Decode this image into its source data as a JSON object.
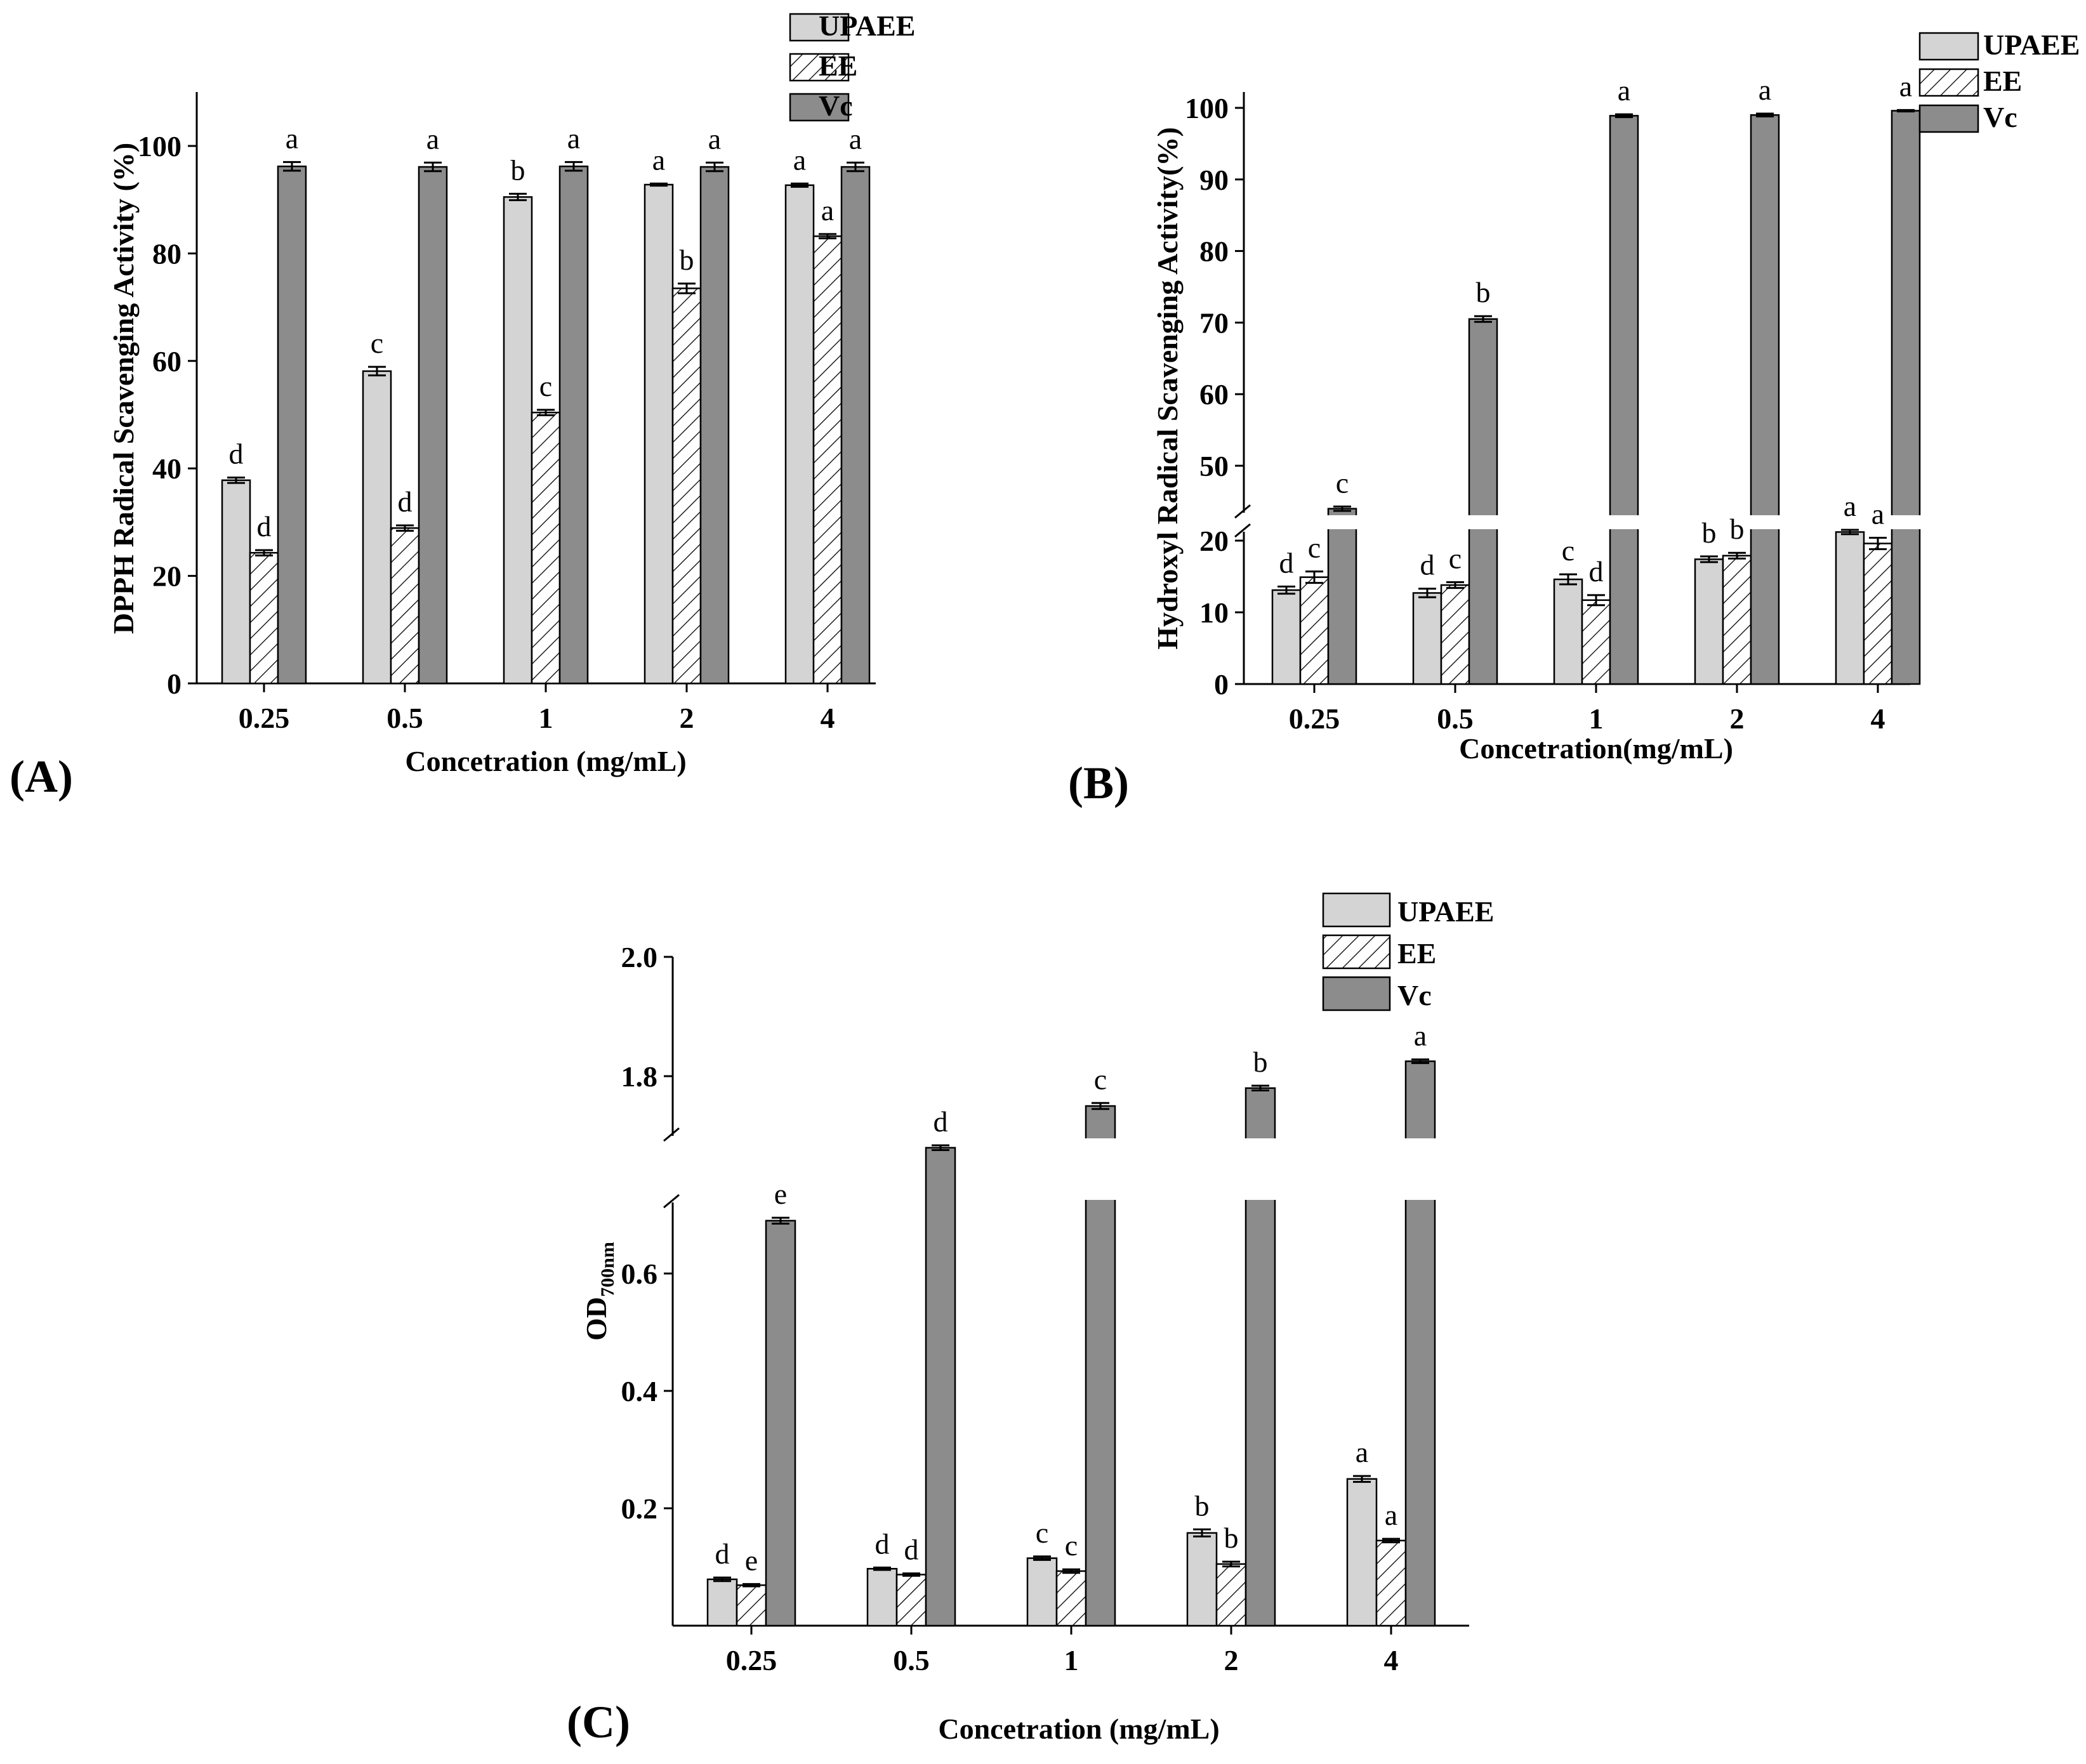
{
  "legend": {
    "upaee": "UPAEE",
    "ee": "EE",
    "vc": "Vc"
  },
  "colors": {
    "upaee": "#d4d4d4",
    "ee": "#ffffff",
    "vc": "#8c8c8c",
    "axis": "#000000"
  },
  "chart_data": [
    {
      "panel": "(A)",
      "type": "bar",
      "categories": [
        "0.25",
        "0.5",
        "1",
        "2",
        "4"
      ],
      "xlabel": "Concetration (mg/mL)",
      "ylabel": "DPPH Radical Scavenging Activity (%)",
      "ylim": [
        0,
        110
      ],
      "yticks": [
        "0",
        "20",
        "40",
        "60",
        "80",
        "100"
      ],
      "series": [
        {
          "name": "UPAEE",
          "values": [
            37.8,
            58.1,
            90.5,
            92.8,
            92.7
          ],
          "errors": [
            0.5,
            0.8,
            0.6,
            0.2,
            0.3
          ],
          "letters": [
            "d",
            "c",
            "b",
            "a",
            "a"
          ]
        },
        {
          "name": "EE",
          "values": [
            24.3,
            28.9,
            50.4,
            73.5,
            83.2
          ],
          "errors": [
            0.5,
            0.5,
            0.5,
            0.9,
            0.4
          ],
          "letters": [
            "d",
            "d",
            "c",
            "b",
            "a"
          ]
        },
        {
          "name": "Vc",
          "values": [
            96.2,
            96.1,
            96.2,
            96.1,
            96.1
          ],
          "errors": [
            0.8,
            0.8,
            0.8,
            0.8,
            0.8
          ],
          "letters": [
            "a",
            "a",
            "a",
            "a",
            "a"
          ]
        }
      ]
    },
    {
      "panel": "(B)",
      "type": "bar",
      "categories": [
        "0.25",
        "0.5",
        "1",
        "2",
        "4"
      ],
      "xlabel": "Concetration(mg/mL)",
      "ylabel": "Hydroxyl Radical Scavenging Activity(%)",
      "ylim": [
        0,
        100
      ],
      "axis_break": [
        22,
        42
      ],
      "yticks": [
        "0",
        "10",
        "20",
        "50",
        "60",
        "70",
        "80",
        "90",
        "100"
      ],
      "series": [
        {
          "name": "UPAEE",
          "values": [
            13.1,
            12.7,
            14.6,
            17.4,
            21.2
          ],
          "errors": [
            0.5,
            0.6,
            0.7,
            0.4,
            0.3
          ],
          "letters": [
            "d",
            "d",
            "c",
            "b",
            "a"
          ]
        },
        {
          "name": "EE",
          "values": [
            14.9,
            13.8,
            11.7,
            17.9,
            19.6
          ],
          "errors": [
            0.8,
            0.4,
            0.7,
            0.4,
            0.8
          ],
          "letters": [
            "c",
            "c",
            "d",
            "b",
            "a"
          ]
        },
        {
          "name": "Vc",
          "values": [
            44.0,
            70.5,
            98.9,
            99.0,
            99.6
          ],
          "errors": [
            0.3,
            0.4,
            0.2,
            0.2,
            0.1
          ],
          "letters": [
            "c",
            "b",
            "a",
            "a",
            "a"
          ]
        }
      ]
    },
    {
      "panel": "(C)",
      "type": "bar",
      "categories": [
        "0.25",
        "0.5",
        "1",
        "2",
        "4"
      ],
      "xlabel": "Concetration (mg/mL)",
      "ylabel": "OD",
      "ylabel_sub": "700nm",
      "ylim": [
        0,
        2.0
      ],
      "axis_break": [
        0.7,
        1.65
      ],
      "yticks": [
        "0.2",
        "0.4",
        "0.6",
        "1.8",
        "2.0"
      ],
      "series": [
        {
          "name": "UPAEE",
          "values": [
            0.079,
            0.097,
            0.115,
            0.158,
            0.25
          ],
          "errors": [
            0.003,
            0.002,
            0.003,
            0.006,
            0.005
          ],
          "letters": [
            "d",
            "d",
            "c",
            "b",
            "a"
          ]
        },
        {
          "name": "EE",
          "values": [
            0.069,
            0.087,
            0.093,
            0.105,
            0.145
          ],
          "errors": [
            0.002,
            0.002,
            0.003,
            0.004,
            0.003
          ],
          "letters": [
            "e",
            "d",
            "c",
            "b",
            "a"
          ]
        },
        {
          "name": "Vc",
          "values": [
            0.69,
            1.68,
            1.75,
            1.78,
            1.825
          ],
          "errors": [
            0.005,
            0.004,
            0.005,
            0.004,
            0.003
          ],
          "letters": [
            "e",
            "d",
            "c",
            "b",
            "a"
          ]
        }
      ]
    }
  ]
}
